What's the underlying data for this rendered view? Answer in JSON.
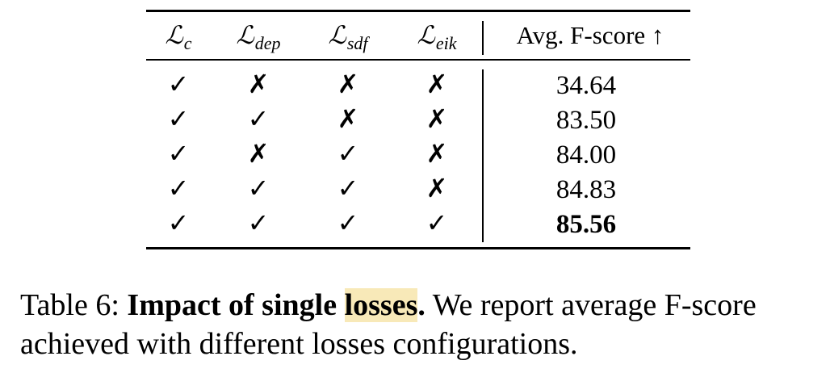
{
  "table": {
    "headers": [
      {
        "base": "ℒ",
        "sub": "c"
      },
      {
        "base": "ℒ",
        "sub": "dep"
      },
      {
        "base": "ℒ",
        "sub": "sdf"
      },
      {
        "base": "ℒ",
        "sub": "eik"
      }
    ],
    "metric_header": "Avg. F-score ↑",
    "rows": [
      {
        "marks": [
          "✓",
          "✗",
          "✗",
          "✗"
        ],
        "value": "34.64",
        "best": false
      },
      {
        "marks": [
          "✓",
          "✓",
          "✗",
          "✗"
        ],
        "value": "83.50",
        "best": false
      },
      {
        "marks": [
          "✓",
          "✗",
          "✓",
          "✗"
        ],
        "value": "84.00",
        "best": false
      },
      {
        "marks": [
          "✓",
          "✓",
          "✓",
          "✗"
        ],
        "value": "84.83",
        "best": false
      },
      {
        "marks": [
          "✓",
          "✓",
          "✓",
          "✓"
        ],
        "value": "85.56",
        "best": true
      }
    ]
  },
  "caption": {
    "label": "Table 6:",
    "title_part1": "Impact of single",
    "title_highlight": "losses",
    "title_end": ".",
    "line1_rest": "We report average F-score",
    "line2": "achieved with different losses configurations."
  },
  "highlight_color": "#f8e9b8"
}
